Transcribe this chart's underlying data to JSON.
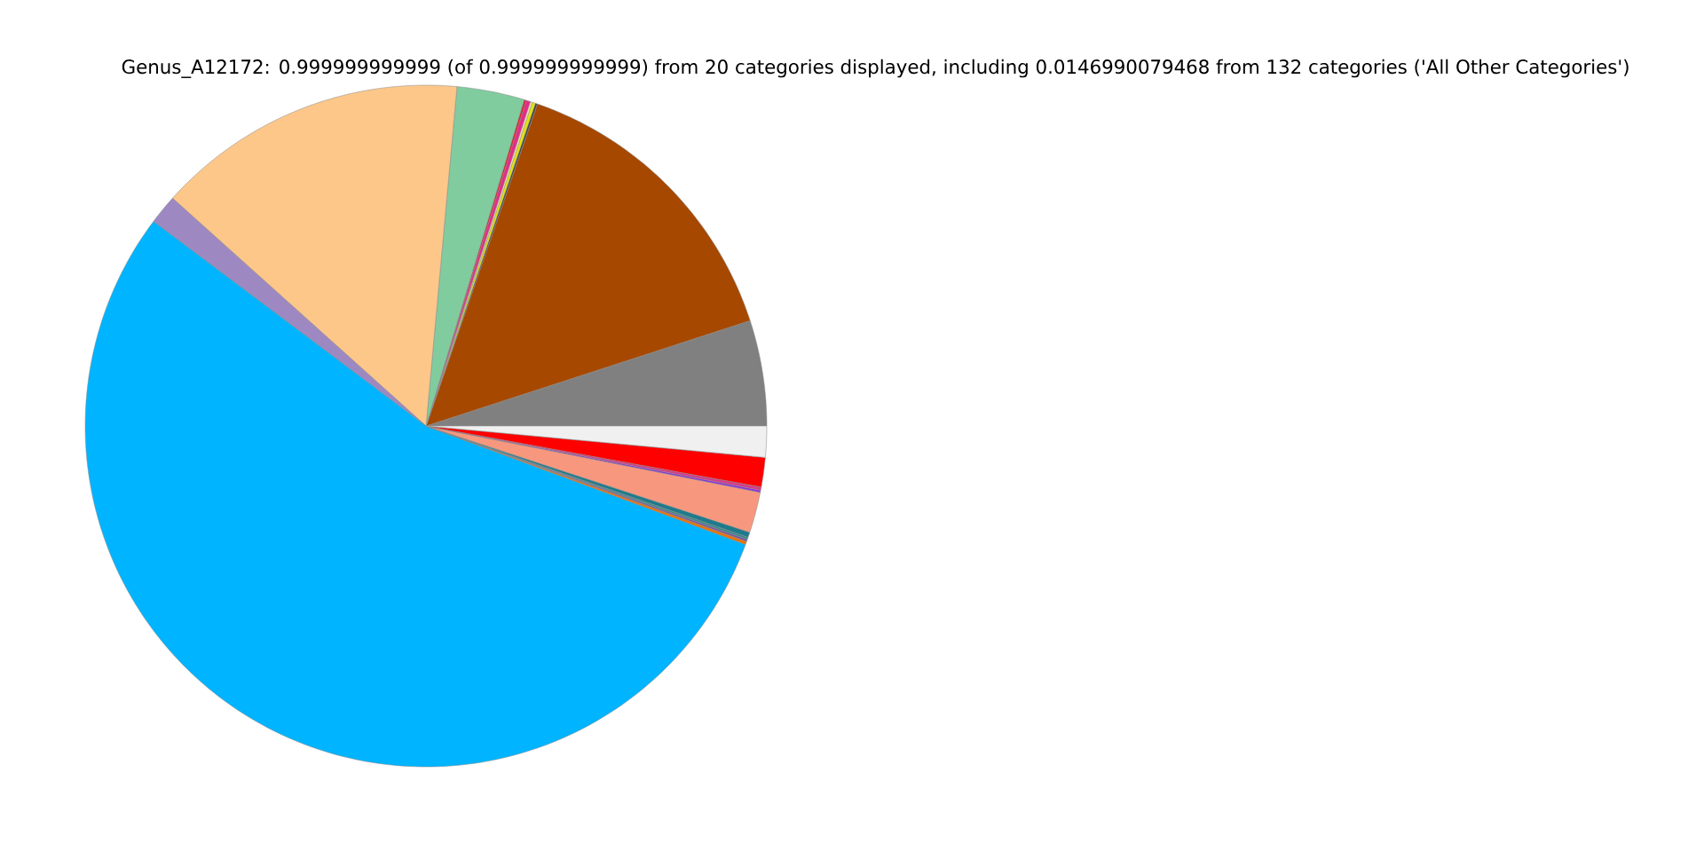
{
  "chart_data": {
    "type": "pie",
    "title": "Genus_A12172: 0.999999999999 (of 0.999999999999) from 20 categories displayed, including 0.0146990079468 from 132 categories ('All Other Categories')",
    "categories": [
      null,
      null,
      null,
      null,
      null,
      null,
      null,
      null,
      null,
      null,
      null,
      null,
      null,
      null,
      null,
      null,
      null,
      null,
      null,
      null
    ],
    "values": [
      5.0,
      14.7,
      0.1,
      0.15,
      0.1,
      0.2,
      0.1,
      3.2,
      14.8,
      1.4,
      54.6,
      0.15,
      0.1,
      0.1,
      0.25,
      1.93,
      0.1,
      0.15,
      1.4,
      1.47
    ],
    "colors": [
      "#808080",
      "#a64800",
      "#444444",
      "#e6e600",
      "#f5deb3",
      "#e7298a",
      "#d62728",
      "#80cc9e",
      "#fdc78a",
      "#9e88c2",
      "#00b4ff",
      "#e6740a",
      "#7b4fa0",
      "#2c8a8a",
      "#1f7a8c",
      "#f7987e",
      "#8a2be2",
      "#d63a8a",
      "#ff0000",
      "#f0f0f0"
    ]
  }
}
